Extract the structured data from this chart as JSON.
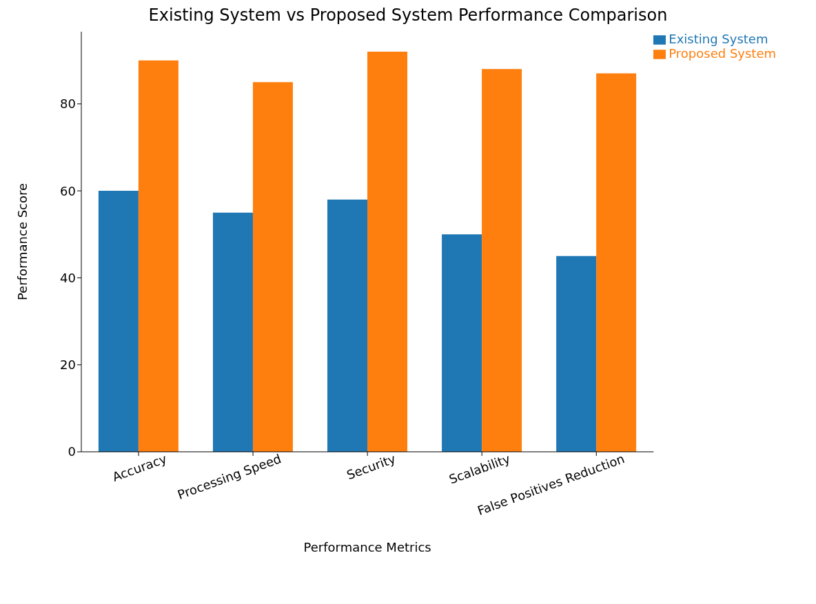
{
  "chart_data": {
    "type": "bar",
    "title": "Existing System vs Proposed System Performance Comparison",
    "xlabel": "Performance Metrics",
    "ylabel": "Performance Score",
    "categories": [
      "Accuracy",
      "Processing Speed",
      "Security",
      "Scalability",
      "False Positives Reduction"
    ],
    "series": [
      {
        "name": "Existing System",
        "color": "#1f77b4",
        "values": [
          60,
          55,
          58,
          50,
          45
        ]
      },
      {
        "name": "Proposed System",
        "color": "#ff7f0e",
        "values": [
          90,
          85,
          92,
          88,
          87
        ]
      }
    ],
    "ylim": [
      0,
      96.6
    ],
    "yticks": [
      0,
      20,
      40,
      60,
      80
    ],
    "grid": false,
    "legend": "top right"
  }
}
